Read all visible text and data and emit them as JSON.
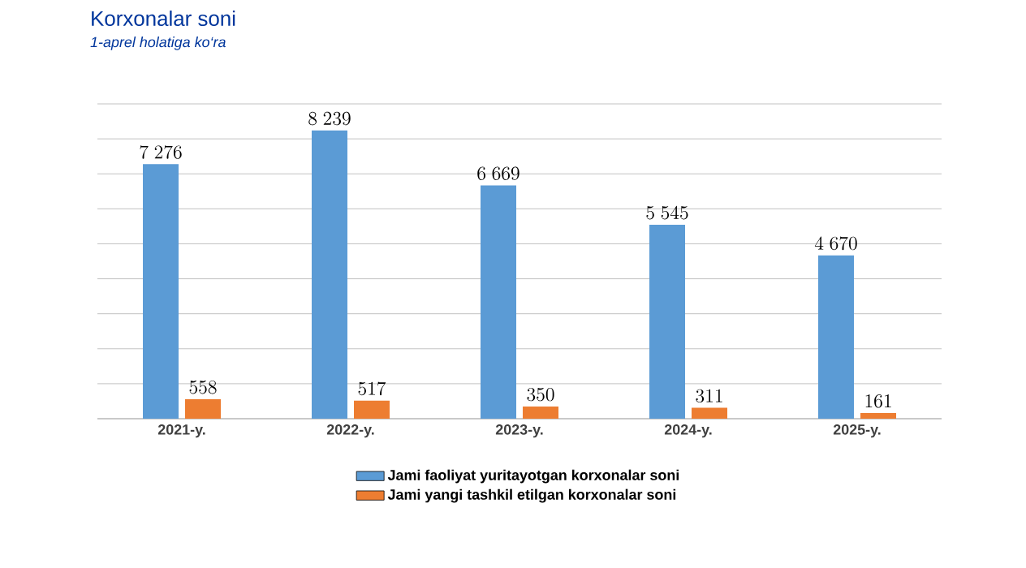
{
  "chart_data": {
    "type": "bar",
    "title": "Korxonalar soni",
    "subtitle": "1-aprel holatiga ko‘ra",
    "categories": [
      "2021-y.",
      "2022-y.",
      "2023-y.",
      "2024-y.",
      "2025-y."
    ],
    "series": [
      {
        "name": "Jami faoliyat yuritayotgan korxonalar soni",
        "color": "#5b9bd5",
        "values": [
          7276,
          8239,
          6669,
          5545,
          4670
        ]
      },
      {
        "name": "Jami yangi tashkil etilgan korxonalar soni",
        "color": "#ed7d31",
        "values": [
          558,
          517,
          350,
          311,
          161
        ]
      }
    ],
    "ylim": [
      0,
      9000
    ],
    "yticks": [
      {
        "value": 0,
        "label": null
      },
      {
        "value": 1000,
        "label": null
      },
      {
        "value": 2000,
        "label": null
      },
      {
        "value": 3000,
        "label": null
      },
      {
        "value": 4000,
        "label": null
      },
      {
        "value": 5000,
        "label": null
      },
      {
        "value": 6000,
        "label": null
      },
      {
        "value": 7000,
        "label": null
      },
      {
        "value": 8000,
        "label": null
      },
      {
        "value": 9000,
        "label": null
      }
    ],
    "grid": "y",
    "legend": "bottom",
    "data_labels": true
  }
}
